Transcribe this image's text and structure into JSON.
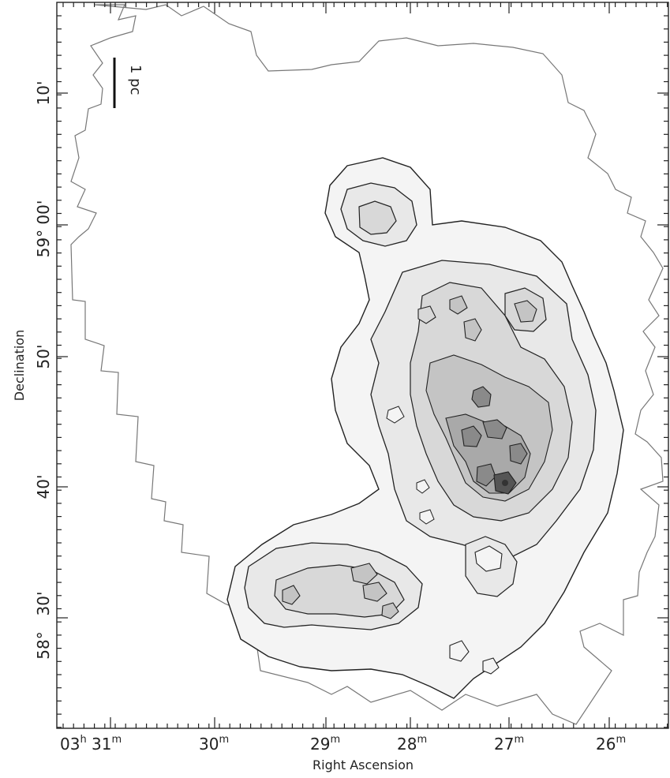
{
  "chart_data": {
    "type": "contour",
    "xlabel": "Right Ascension",
    "ylabel": "Declination",
    "x_ticks": [
      {
        "main": "03",
        "unit": "h",
        "second": "31",
        "second_unit": "m"
      },
      {
        "main": "30",
        "unit": "m"
      },
      {
        "main": "29",
        "unit": "m"
      },
      {
        "main": "28",
        "unit": "m"
      },
      {
        "main": "27",
        "unit": "m"
      },
      {
        "main": "26",
        "unit": "m"
      }
    ],
    "y_ticks": [
      {
        "label": "10'"
      },
      {
        "label": "59° 00'"
      },
      {
        "label": "50'"
      },
      {
        "label": "40'"
      },
      {
        "label": "30'"
      },
      {
        "label": "58°"
      }
    ],
    "scale_bar": {
      "label": "1 pc"
    },
    "contour_levels": 7,
    "fill_colors": [
      "#ffffff",
      "#f4f4f4",
      "#e8e8e8",
      "#d8d8d8",
      "#c4c4c4",
      "#a9a9a9",
      "#8a8a8a",
      "#555555"
    ]
  }
}
